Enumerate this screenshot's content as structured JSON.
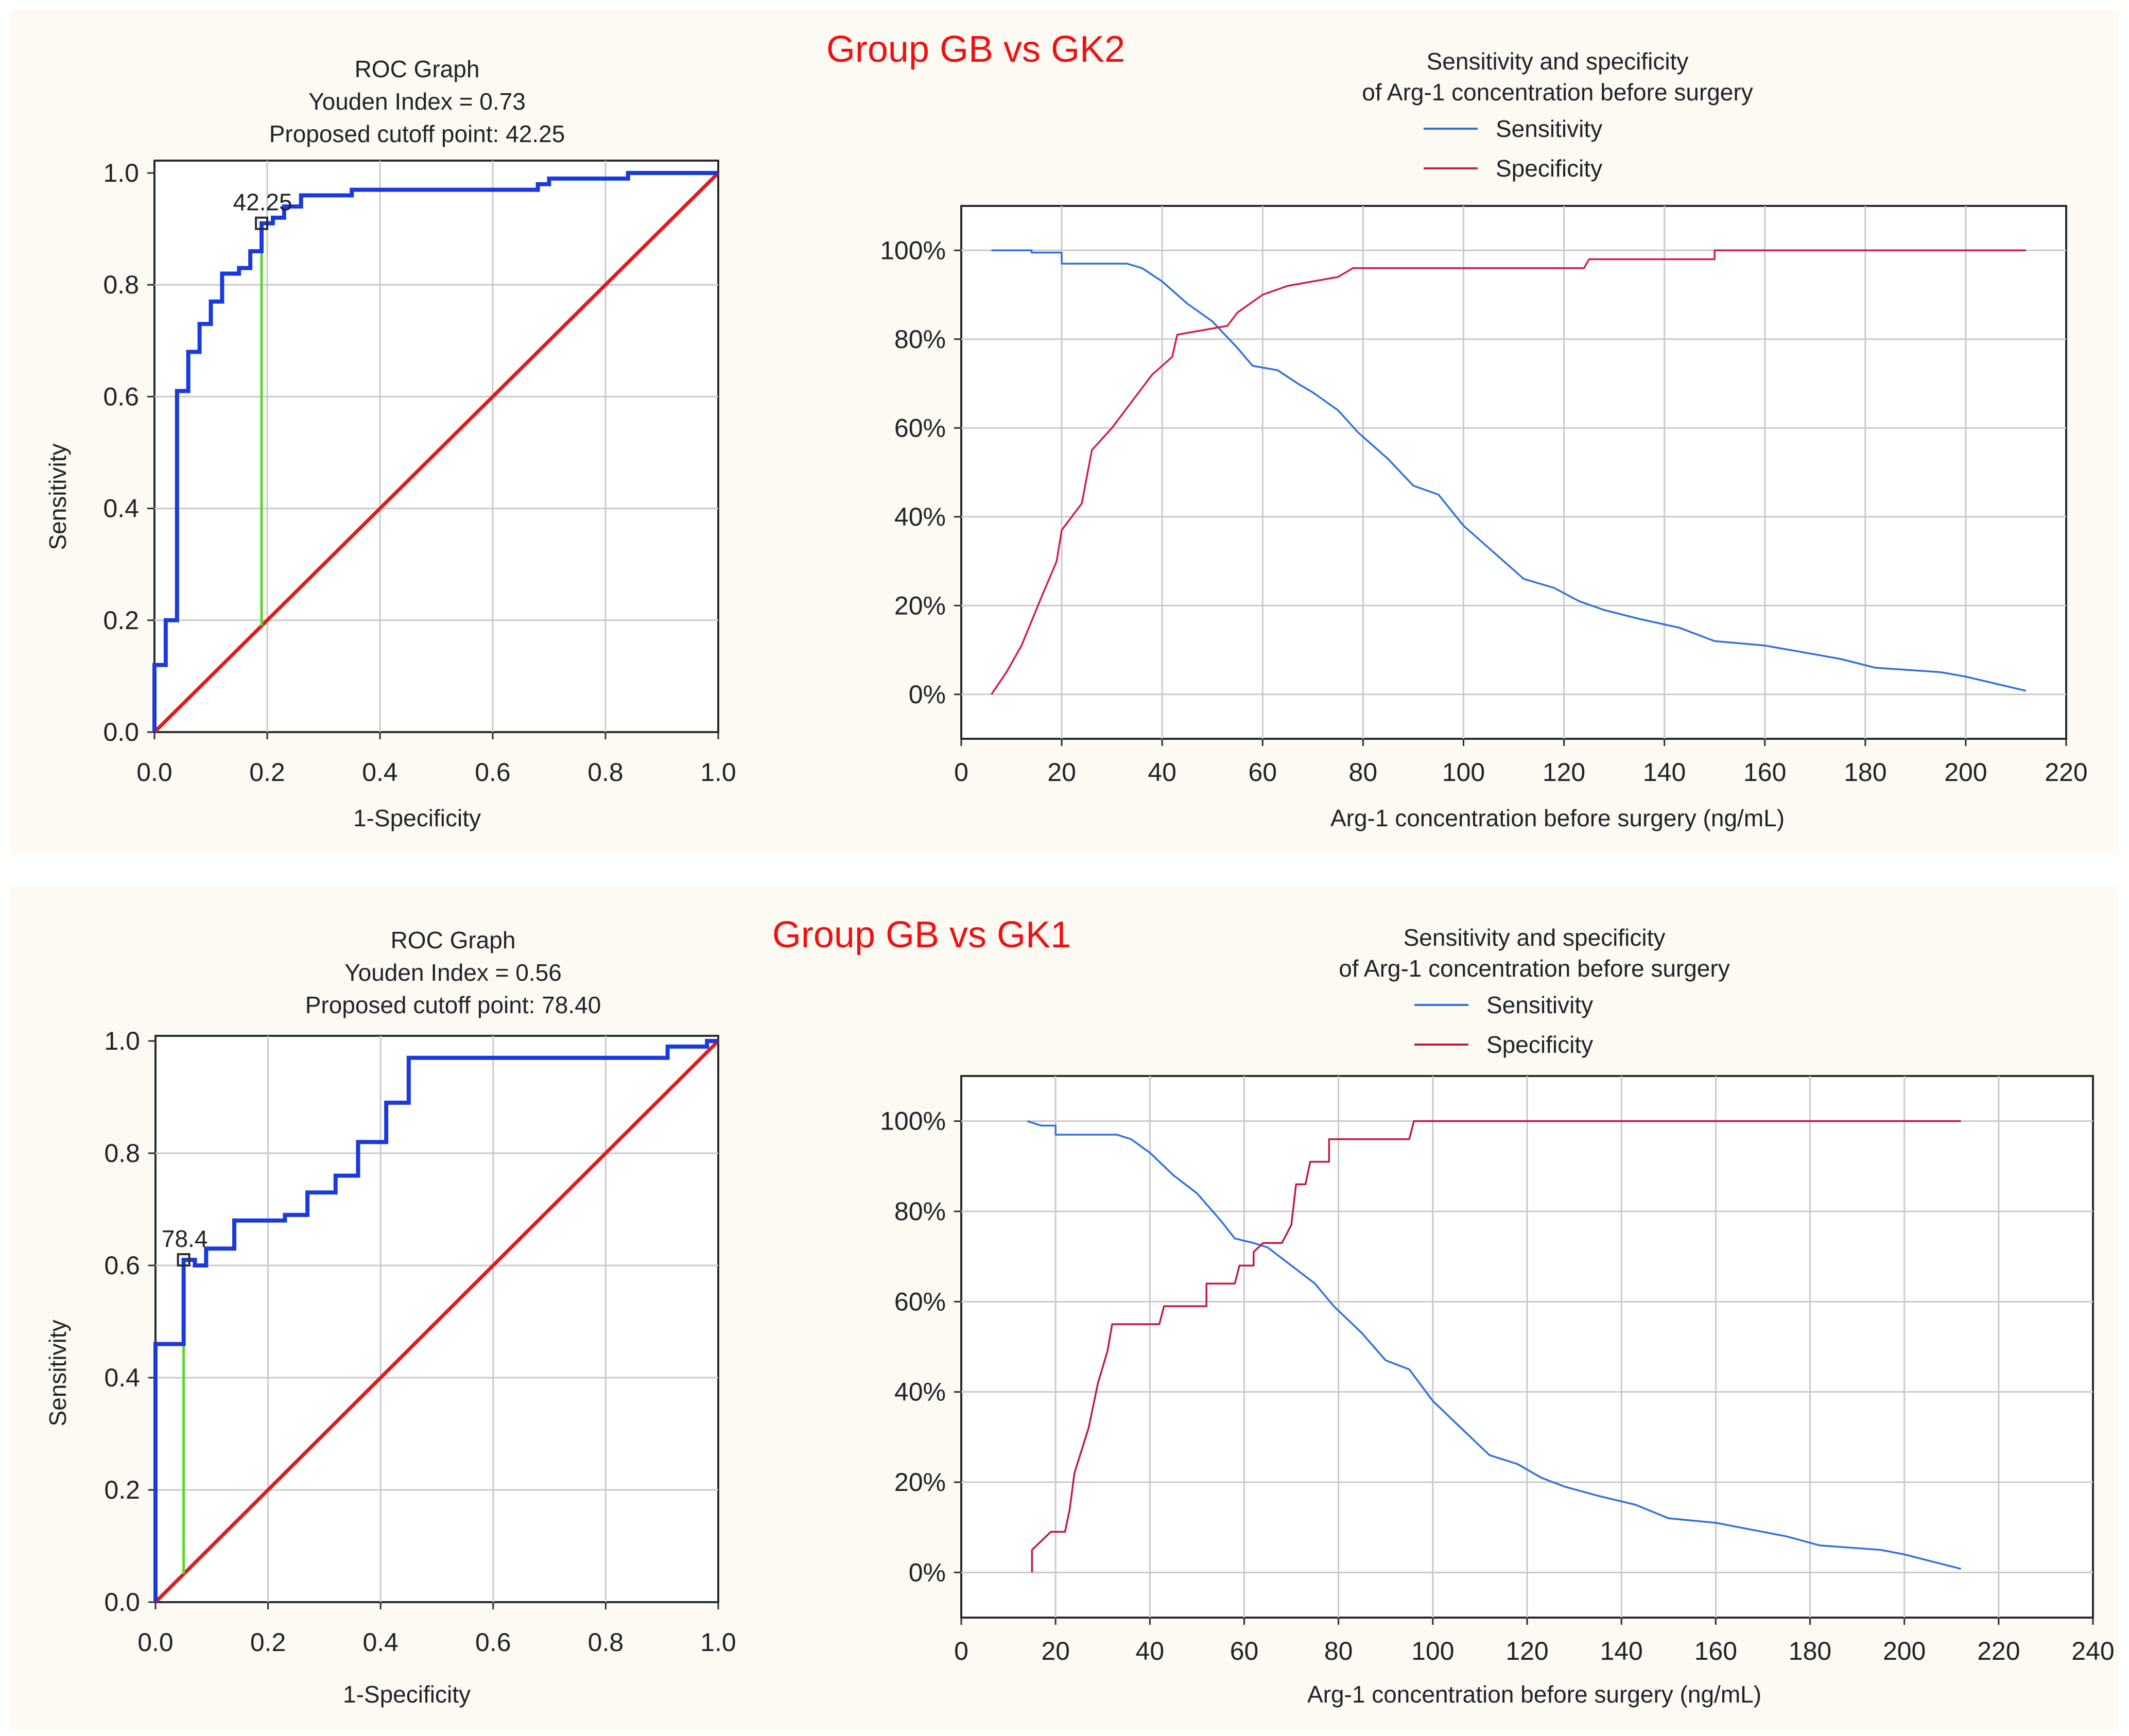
{
  "chart_data": [
    {
      "group_title": "Group GB vs GK2",
      "roc": {
        "type": "line",
        "title_lines": [
          "ROC Graph",
          "Youden Index = 0.73",
          "Proposed cutoff point: 42.25"
        ],
        "xlabel": "1-Specificity",
        "ylabel": "Sensitivity",
        "xlim": [
          0,
          1
        ],
        "ylim": [
          0,
          1
        ],
        "xticks": [
          "0.0",
          "0.2",
          "0.4",
          "0.6",
          "0.8",
          "1.0"
        ],
        "yticks": [
          "0.0",
          "0.2",
          "0.4",
          "0.6",
          "0.8",
          "1.0"
        ],
        "cutoff_label": "42.25",
        "cutoff_point": [
          0.19,
          0.91
        ],
        "youden_line": [
          [
            0.19,
            0.19
          ],
          [
            0.19,
            0.91
          ]
        ],
        "series": [
          {
            "name": "ROC curve",
            "color": "#1a3adb",
            "points": [
              [
                0,
                0
              ],
              [
                0,
                0.12
              ],
              [
                0.02,
                0.12
              ],
              [
                0.02,
                0.2
              ],
              [
                0.04,
                0.2
              ],
              [
                0.04,
                0.61
              ],
              [
                0.06,
                0.61
              ],
              [
                0.06,
                0.68
              ],
              [
                0.08,
                0.68
              ],
              [
                0.08,
                0.73
              ],
              [
                0.1,
                0.73
              ],
              [
                0.1,
                0.77
              ],
              [
                0.12,
                0.77
              ],
              [
                0.12,
                0.82
              ],
              [
                0.15,
                0.82
              ],
              [
                0.15,
                0.83
              ],
              [
                0.17,
                0.83
              ],
              [
                0.17,
                0.86
              ],
              [
                0.19,
                0.86
              ],
              [
                0.19,
                0.91
              ],
              [
                0.21,
                0.91
              ],
              [
                0.21,
                0.92
              ],
              [
                0.23,
                0.92
              ],
              [
                0.23,
                0.94
              ],
              [
                0.26,
                0.94
              ],
              [
                0.26,
                0.96
              ],
              [
                0.35,
                0.96
              ],
              [
                0.35,
                0.97
              ],
              [
                0.68,
                0.97
              ],
              [
                0.68,
                0.98
              ],
              [
                0.7,
                0.98
              ],
              [
                0.7,
                0.99
              ],
              [
                0.84,
                0.99
              ],
              [
                0.84,
                1.0
              ],
              [
                1.0,
                1.0
              ]
            ]
          },
          {
            "name": "Reference",
            "color": "#dd1c1c",
            "points": [
              [
                0,
                0
              ],
              [
                1,
                1
              ]
            ]
          }
        ]
      },
      "sens_spec": {
        "type": "line",
        "title_lines": [
          "Sensitivity and specificity",
          "of Arg-1 concentration before surgery"
        ],
        "xlabel": "Arg-1 concentration before surgery (ng/mL)",
        "xlim": [
          0,
          220
        ],
        "ylim": [
          -10,
          110
        ],
        "xticks": [
          0,
          20,
          40,
          60,
          80,
          100,
          120,
          140,
          160,
          180,
          200,
          220
        ],
        "yticks": [
          "0%",
          "20%",
          "40%",
          "60%",
          "80%",
          "100%"
        ],
        "ytick_values": [
          0,
          20,
          40,
          60,
          80,
          100
        ],
        "series": [
          {
            "name": "Sensitivity",
            "color": "#2f6fe0",
            "points": [
              [
                6,
                100
              ],
              [
                14,
                100
              ],
              [
                14,
                99.5
              ],
              [
                20,
                99.5
              ],
              [
                20,
                97
              ],
              [
                33,
                97
              ],
              [
                36,
                96
              ],
              [
                40,
                93
              ],
              [
                45,
                88
              ],
              [
                50,
                84
              ],
              [
                55,
                78
              ],
              [
                58,
                74
              ],
              [
                63,
                73
              ],
              [
                67,
                70
              ],
              [
                70,
                68
              ],
              [
                75,
                64
              ],
              [
                79,
                59
              ],
              [
                85,
                53
              ],
              [
                90,
                47
              ],
              [
                95,
                45
              ],
              [
                100,
                38
              ],
              [
                106,
                32
              ],
              [
                112,
                26
              ],
              [
                118,
                24
              ],
              [
                123,
                21
              ],
              [
                128,
                19
              ],
              [
                135,
                17
              ],
              [
                143,
                15
              ],
              [
                150,
                12
              ],
              [
                160,
                11
              ],
              [
                175,
                8
              ],
              [
                182,
                6
              ],
              [
                195,
                5
              ],
              [
                200,
                4
              ],
              [
                212,
                0.8
              ]
            ]
          },
          {
            "name": "Specificity",
            "color": "#d41c4a",
            "points": [
              [
                6,
                0
              ],
              [
                9,
                5
              ],
              [
                12,
                11
              ],
              [
                16,
                22
              ],
              [
                19,
                30
              ],
              [
                20,
                37
              ],
              [
                24,
                43
              ],
              [
                26,
                55
              ],
              [
                30,
                60
              ],
              [
                34,
                66
              ],
              [
                38,
                72
              ],
              [
                42,
                76
              ],
              [
                43,
                81
              ],
              [
                48,
                82
              ],
              [
                53,
                83
              ],
              [
                55,
                86
              ],
              [
                60,
                90
              ],
              [
                65,
                92
              ],
              [
                70,
                93
              ],
              [
                75,
                94
              ],
              [
                78,
                96
              ],
              [
                100,
                96
              ],
              [
                124,
                96
              ],
              [
                125,
                98
              ],
              [
                150,
                98
              ],
              [
                150,
                100
              ],
              [
                212,
                100
              ]
            ]
          }
        ]
      }
    },
    {
      "group_title": "Group GB vs GK1",
      "roc": {
        "type": "line",
        "title_lines": [
          "ROC Graph",
          "Youden Index = 0.56",
          "Proposed cutoff point: 78.40"
        ],
        "xlabel": "1-Specificity",
        "ylabel": "Sensitivity",
        "xlim": [
          0,
          1
        ],
        "ylim": [
          0,
          1
        ],
        "xticks": [
          "0.0",
          "0.2",
          "0.4",
          "0.6",
          "0.8",
          "1.0"
        ],
        "yticks": [
          "0.0",
          "0.2",
          "0.4",
          "0.6",
          "0.8",
          "1.0"
        ],
        "cutoff_label": "78.4",
        "cutoff_point": [
          0.05,
          0.61
        ],
        "youden_line": [
          [
            0.05,
            0.05
          ],
          [
            0.05,
            0.61
          ]
        ],
        "series": [
          {
            "name": "ROC curve",
            "color": "#1a3adb",
            "points": [
              [
                0,
                0
              ],
              [
                0,
                0.46
              ],
              [
                0.05,
                0.46
              ],
              [
                0.05,
                0.61
              ],
              [
                0.07,
                0.61
              ],
              [
                0.07,
                0.6
              ],
              [
                0.09,
                0.6
              ],
              [
                0.09,
                0.63
              ],
              [
                0.14,
                0.63
              ],
              [
                0.14,
                0.68
              ],
              [
                0.23,
                0.68
              ],
              [
                0.23,
                0.69
              ],
              [
                0.27,
                0.69
              ],
              [
                0.27,
                0.73
              ],
              [
                0.32,
                0.73
              ],
              [
                0.32,
                0.76
              ],
              [
                0.36,
                0.76
              ],
              [
                0.36,
                0.82
              ],
              [
                0.41,
                0.82
              ],
              [
                0.41,
                0.89
              ],
              [
                0.45,
                0.89
              ],
              [
                0.45,
                0.97
              ],
              [
                0.91,
                0.97
              ],
              [
                0.91,
                0.99
              ],
              [
                0.98,
                0.99
              ],
              [
                0.98,
                1.0
              ],
              [
                1.0,
                1.0
              ]
            ]
          },
          {
            "name": "Reference",
            "color": "#dd1c1c",
            "points": [
              [
                0,
                0
              ],
              [
                1,
                1
              ]
            ]
          }
        ]
      },
      "sens_spec": {
        "type": "line",
        "title_lines": [
          "Sensitivity and specificity",
          "of Arg-1 concentration before surgery"
        ],
        "xlabel": "Arg-1 concentration before surgery (ng/mL)",
        "xlim": [
          0,
          240
        ],
        "ylim": [
          -10,
          110
        ],
        "xticks": [
          0,
          20,
          40,
          60,
          80,
          100,
          120,
          140,
          160,
          180,
          200,
          220,
          240
        ],
        "yticks": [
          "0%",
          "20%",
          "40%",
          "60%",
          "80%",
          "100%"
        ],
        "ytick_values": [
          0,
          20,
          40,
          60,
          80,
          100
        ],
        "series": [
          {
            "name": "Sensitivity",
            "color": "#2f6fe0",
            "points": [
              [
                14,
                100
              ],
              [
                17,
                99
              ],
              [
                20,
                99
              ],
              [
                20,
                97
              ],
              [
                33,
                97
              ],
              [
                36,
                96
              ],
              [
                40,
                93
              ],
              [
                45,
                88
              ],
              [
                50,
                84
              ],
              [
                55,
                78
              ],
              [
                58,
                74
              ],
              [
                62,
                73
              ],
              [
                65,
                72
              ],
              [
                70,
                68
              ],
              [
                75,
                64
              ],
              [
                79,
                59
              ],
              [
                85,
                53
              ],
              [
                90,
                47
              ],
              [
                95,
                45
              ],
              [
                100,
                38
              ],
              [
                106,
                32
              ],
              [
                112,
                26
              ],
              [
                118,
                24
              ],
              [
                123,
                21
              ],
              [
                128,
                19
              ],
              [
                135,
                17
              ],
              [
                143,
                15
              ],
              [
                150,
                12
              ],
              [
                160,
                11
              ],
              [
                175,
                8
              ],
              [
                182,
                6
              ],
              [
                195,
                5
              ],
              [
                200,
                4
              ],
              [
                212,
                0.8
              ]
            ]
          },
          {
            "name": "Specificity",
            "color": "#c01a3e",
            "points": [
              [
                15,
                0
              ],
              [
                15,
                5
              ],
              [
                19,
                9
              ],
              [
                22,
                9
              ],
              [
                23,
                14
              ],
              [
                24,
                22
              ],
              [
                27,
                32
              ],
              [
                29,
                42
              ],
              [
                31,
                49
              ],
              [
                32,
                55
              ],
              [
                42,
                55
              ],
              [
                43,
                59
              ],
              [
                52,
                59
              ],
              [
                52,
                64
              ],
              [
                58,
                64
              ],
              [
                59,
                68
              ],
              [
                62,
                68
              ],
              [
                62,
                71
              ],
              [
                64,
                73
              ],
              [
                68,
                73
              ],
              [
                70,
                77
              ],
              [
                71,
                86
              ],
              [
                73,
                86
              ],
              [
                74,
                91
              ],
              [
                78,
                91
              ],
              [
                78,
                96
              ],
              [
                95,
                96
              ],
              [
                96,
                100
              ],
              [
                212,
                100
              ]
            ]
          }
        ]
      }
    }
  ]
}
